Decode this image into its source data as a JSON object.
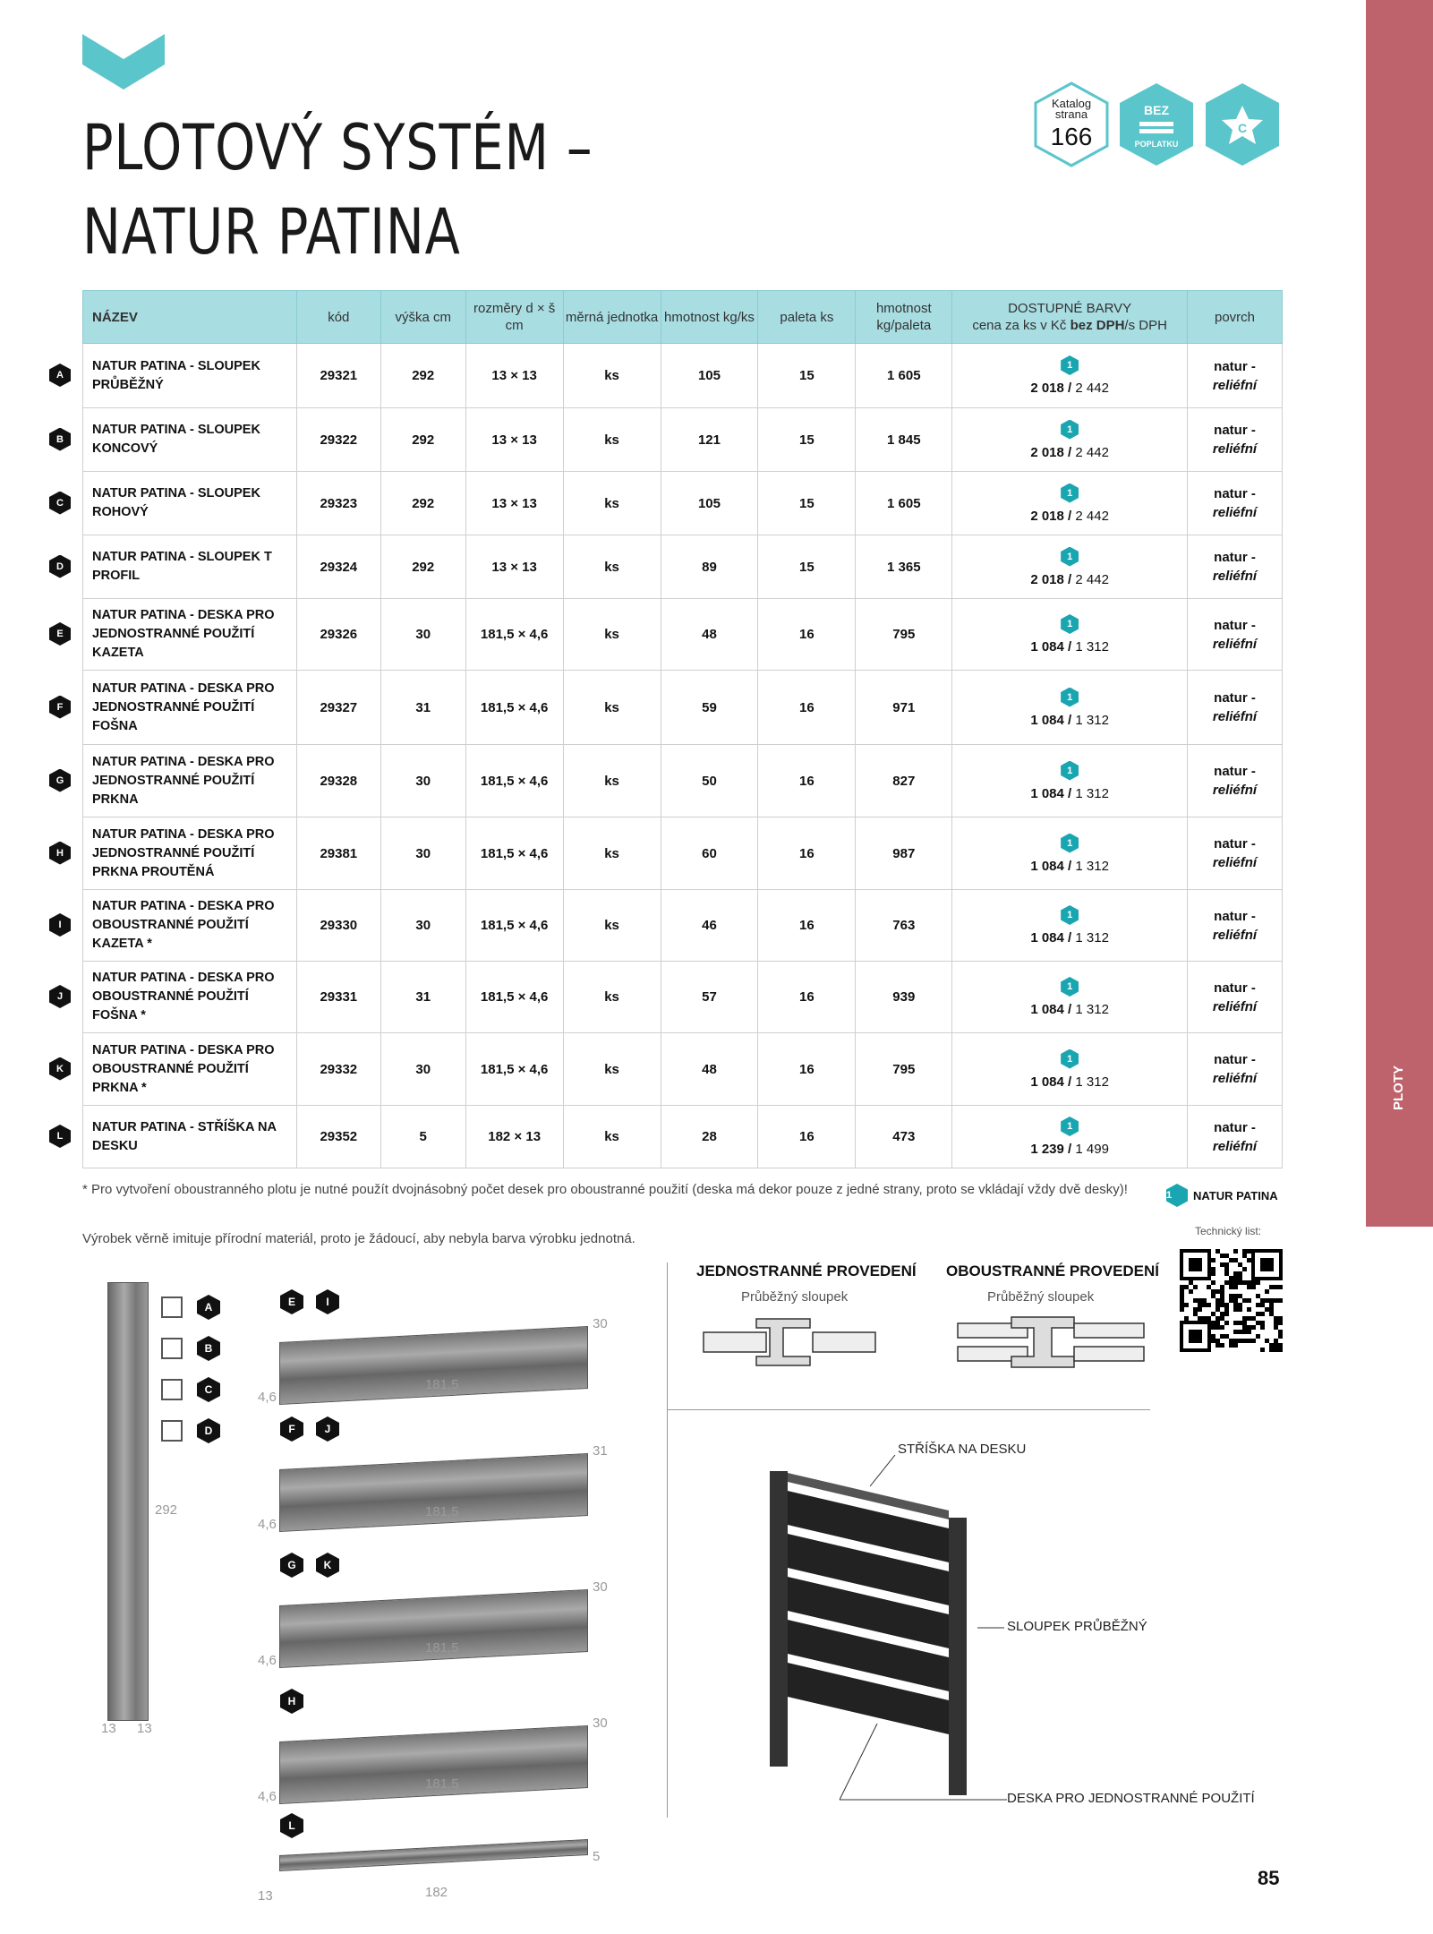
{
  "title_lines": [
    "PLOTOVÝ SYSTÉM –",
    "NATUR PATINA"
  ],
  "badges": {
    "catalog_label": "Katalog strana",
    "catalog_page": "166",
    "fee_top": "BEZ",
    "fee_bottom": "POPLATKU",
    "star_letter": "C"
  },
  "accent_color": "#5bc5cc",
  "side_tab": "PLOTY",
  "table": {
    "headers": [
      "NÁZEV",
      "kód",
      "výška cm",
      "rozměry d × š cm",
      "měrná jednotka",
      "hmotnost kg/ks",
      "paleta ks",
      "hmotnost kg/paleta",
      "DOSTUPNÉ BARVY",
      "povrch"
    ],
    "price_header": {
      "prefix": "cena za ks v Kč ",
      "bold": "bez DPH",
      "suffix": "/s DPH"
    },
    "rows": [
      {
        "mark": "A",
        "name": "NATUR PATINA - SLOUPEK PRŮBĚŽNÝ",
        "code": "29321",
        "height": "292",
        "dims": "13 × 13",
        "unit": "ks",
        "kg": "105",
        "pallet": "15",
        "kgp": "1 605",
        "color": "1",
        "price": "2 018",
        "price_vat": "2 442",
        "surface1": "natur -",
        "surface2": "reliéfní"
      },
      {
        "mark": "B",
        "name": "NATUR PATINA - SLOUPEK KONCOVÝ",
        "code": "29322",
        "height": "292",
        "dims": "13 × 13",
        "unit": "ks",
        "kg": "121",
        "pallet": "15",
        "kgp": "1 845",
        "color": "1",
        "price": "2 018",
        "price_vat": "2 442",
        "surface1": "natur -",
        "surface2": "reliéfní"
      },
      {
        "mark": "C",
        "name": "NATUR PATINA - SLOUPEK ROHOVÝ",
        "code": "29323",
        "height": "292",
        "dims": "13 × 13",
        "unit": "ks",
        "kg": "105",
        "pallet": "15",
        "kgp": "1 605",
        "color": "1",
        "price": "2 018",
        "price_vat": "2 442",
        "surface1": "natur -",
        "surface2": "reliéfní"
      },
      {
        "mark": "D",
        "name": "NATUR PATINA - SLOUPEK T PROFIL",
        "code": "29324",
        "height": "292",
        "dims": "13 × 13",
        "unit": "ks",
        "kg": "89",
        "pallet": "15",
        "kgp": "1 365",
        "color": "1",
        "price": "2 018",
        "price_vat": "2 442",
        "surface1": "natur -",
        "surface2": "reliéfní"
      },
      {
        "mark": "E",
        "name": "NATUR PATINA - DESKA PRO JEDNOSTRANNÉ POUŽITÍ KAZETA",
        "code": "29326",
        "height": "30",
        "dims": "181,5 × 4,6",
        "unit": "ks",
        "kg": "48",
        "pallet": "16",
        "kgp": "795",
        "color": "1",
        "price": "1 084",
        "price_vat": "1 312",
        "surface1": "natur -",
        "surface2": "reliéfní"
      },
      {
        "mark": "F",
        "name": "NATUR PATINA - DESKA PRO JEDNOSTRANNÉ POUŽITÍ FOŠNA",
        "code": "29327",
        "height": "31",
        "dims": "181,5 × 4,6",
        "unit": "ks",
        "kg": "59",
        "pallet": "16",
        "kgp": "971",
        "color": "1",
        "price": "1 084",
        "price_vat": "1 312",
        "surface1": "natur -",
        "surface2": "reliéfní"
      },
      {
        "mark": "G",
        "name": "NATUR PATINA - DESKA PRO JEDNOSTRANNÉ POUŽITÍ PRKNA",
        "code": "29328",
        "height": "30",
        "dims": "181,5 × 4,6",
        "unit": "ks",
        "kg": "50",
        "pallet": "16",
        "kgp": "827",
        "color": "1",
        "price": "1 084",
        "price_vat": "1 312",
        "surface1": "natur -",
        "surface2": "reliéfní"
      },
      {
        "mark": "H",
        "name": "NATUR PATINA - DESKA PRO JEDNOSTRANNÉ POUŽITÍ PRKNA PROUTĚNÁ",
        "code": "29381",
        "height": "30",
        "dims": "181,5 × 4,6",
        "unit": "ks",
        "kg": "60",
        "pallet": "16",
        "kgp": "987",
        "color": "1",
        "price": "1 084",
        "price_vat": "1 312",
        "surface1": "natur -",
        "surface2": "reliéfní"
      },
      {
        "mark": "I",
        "name": "NATUR PATINA - DESKA PRO OBOUSTRANNÉ POUŽITÍ KAZETA *",
        "code": "29330",
        "height": "30",
        "dims": "181,5 × 4,6",
        "unit": "ks",
        "kg": "46",
        "pallet": "16",
        "kgp": "763",
        "color": "1",
        "price": "1 084",
        "price_vat": "1 312",
        "surface1": "natur -",
        "surface2": "reliéfní"
      },
      {
        "mark": "J",
        "name": "NATUR PATINA - DESKA PRO OBOUSTRANNÉ POUŽITÍ FOŠNA *",
        "code": "29331",
        "height": "31",
        "dims": "181,5 × 4,6",
        "unit": "ks",
        "kg": "57",
        "pallet": "16",
        "kgp": "939",
        "color": "1",
        "price": "1 084",
        "price_vat": "1 312",
        "surface1": "natur -",
        "surface2": "reliéfní"
      },
      {
        "mark": "K",
        "name": "NATUR PATINA - DESKA PRO OBOUSTRANNÉ POUŽITÍ PRKNA *",
        "code": "29332",
        "height": "30",
        "dims": "181,5 × 4,6",
        "unit": "ks",
        "kg": "48",
        "pallet": "16",
        "kgp": "795",
        "color": "1",
        "price": "1 084",
        "price_vat": "1 312",
        "surface1": "natur -",
        "surface2": "reliéfní"
      },
      {
        "mark": "L",
        "name": "NATUR PATINA - STŘÍŠKA NA DESKU",
        "code": "29352",
        "height": "5",
        "dims": "182 × 13",
        "unit": "ks",
        "kg": "28",
        "pallet": "16",
        "kgp": "473",
        "color": "1",
        "price": "1 239",
        "price_vat": "1 499",
        "surface1": "natur -",
        "surface2": "reliéfní"
      }
    ]
  },
  "notes": {
    "footnote": "* Pro vytvoření oboustranného plotu je nutné použít dvojnásobný počet desek pro oboustranné použití (deska má dekor pouze z jedné strany, proto se vkládají vždy dvě desky)!",
    "note2": "Výrobek věrně imituje přírodní materiál, proto je žádoucí, aby nebyla barva výrobku jednotná."
  },
  "legend": {
    "num": "1",
    "label": "NATUR PATINA"
  },
  "tech_sheet": "Technický list:",
  "diagrams": {
    "one_side_title": "JEDNOSTRANNÉ PROVEDENÍ",
    "one_side_sub": "Průběžný sloupek",
    "two_side_title": "OBOUSTRANNÉ PROVEDENÍ",
    "two_side_sub": "Průběžný sloupek",
    "label_cap": "STŘÍŠKA NA DESKU",
    "label_post": "SLOUPEK PRŮBĚŽNÝ",
    "label_board": "DESKA PRO JEDNOSTRANNÉ POUŽITÍ"
  },
  "products": {
    "post": {
      "height": "292",
      "w1": "13",
      "w2": "13",
      "marks": [
        "A",
        "B",
        "C",
        "D"
      ]
    },
    "boards": [
      {
        "marks": [
          "E",
          "I"
        ],
        "h": "30",
        "len": "181,5",
        "t": "4,6"
      },
      {
        "marks": [
          "F",
          "J"
        ],
        "h": "31",
        "len": "181,5",
        "t": "4,6"
      },
      {
        "marks": [
          "G",
          "K"
        ],
        "h": "30",
        "len": "181,5",
        "t": "4,6"
      },
      {
        "marks": [
          "H"
        ],
        "h": "30",
        "len": "181,5",
        "t": "4,6"
      },
      {
        "marks": [
          "L"
        ],
        "h": "5",
        "len": "182",
        "t": "13"
      }
    ]
  },
  "page_number": "85"
}
